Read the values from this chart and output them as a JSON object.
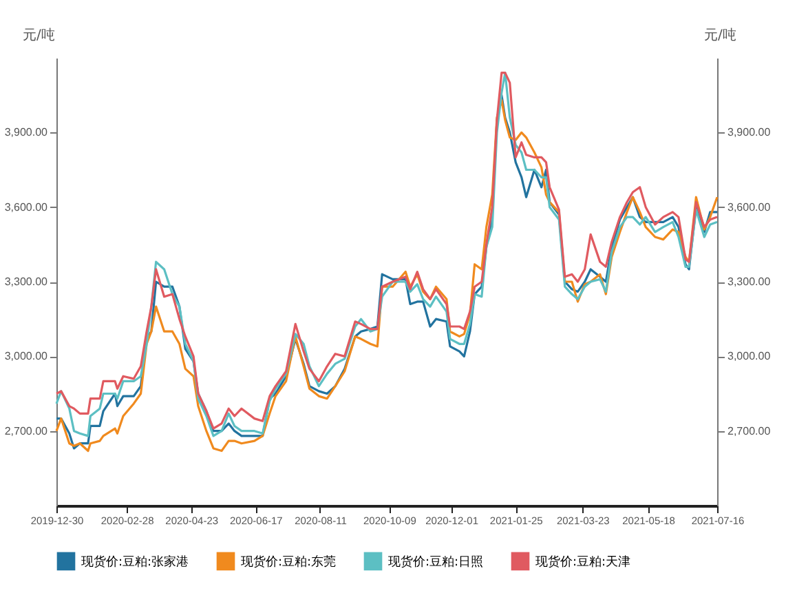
{
  "chart_data": {
    "type": "line",
    "ylabel": "元/吨",
    "y2label": "元/吨",
    "legend": "bottom",
    "grid": false,
    "xlim": [
      "2019-12-30",
      "2021-07-16"
    ],
    "xticks": [
      "2019-12-30",
      "2020-02-28",
      "2020-04-23",
      "2020-06-17",
      "2020-08-11",
      "2020-10-09",
      "2020-12-01",
      "2021-01-25",
      "2021-03-23",
      "2021-05-18",
      "2021-07-16"
    ],
    "ylim": [
      2400,
      4200
    ],
    "yticks": [
      {
        "value": 2700,
        "label": "2,700.00"
      },
      {
        "value": 3000,
        "label": "3,000.00"
      },
      {
        "value": 3300,
        "label": "3,300.00"
      },
      {
        "value": 3600,
        "label": "3,600.00"
      },
      {
        "value": 3900,
        "label": "3,900.00"
      }
    ],
    "y2lim": [
      2400,
      4200
    ],
    "y2ticks": [
      {
        "value": 2700,
        "label": "2,700.00"
      },
      {
        "value": 3000,
        "label": "3,000.00"
      },
      {
        "value": 3300,
        "label": "3,300.00"
      },
      {
        "value": 3600,
        "label": "3,600.00"
      },
      {
        "value": 3900,
        "label": "3,900.00"
      }
    ],
    "x": [
      "2019-12-30",
      "2020-01-03",
      "2020-01-10",
      "2020-01-14",
      "2020-01-19",
      "2020-01-26",
      "2020-01-28",
      "2020-02-05",
      "2020-02-08",
      "2020-02-18",
      "2020-02-20",
      "2020-02-25",
      "2020-03-05",
      "2020-03-11",
      "2020-03-16",
      "2020-03-20",
      "2020-03-24",
      "2020-03-31",
      "2020-04-07",
      "2020-04-13",
      "2020-04-18",
      "2020-04-25",
      "2020-04-29",
      "2020-05-06",
      "2020-05-12",
      "2020-05-19",
      "2020-05-25",
      "2020-05-30",
      "2020-06-05",
      "2020-06-16",
      "2020-06-23",
      "2020-06-29",
      "2020-07-04",
      "2020-07-13",
      "2020-07-21",
      "2020-07-28",
      "2020-08-02",
      "2020-08-10",
      "2020-08-17",
      "2020-08-24",
      "2020-09-01",
      "2020-09-10",
      "2020-09-15",
      "2020-09-23",
      "2020-09-29",
      "2020-10-03",
      "2020-10-12",
      "2020-10-23",
      "2020-10-27",
      "2020-11-02",
      "2020-11-07",
      "2020-11-13",
      "2020-11-18",
      "2020-11-27",
      "2020-11-30",
      "2020-12-08",
      "2020-12-12",
      "2020-12-17",
      "2020-12-21",
      "2020-12-27",
      "2020-12-31",
      "2021-01-05",
      "2021-01-09",
      "2021-01-13",
      "2021-01-16",
      "2021-01-20",
      "2021-01-25",
      "2021-01-30",
      "2021-02-03",
      "2021-02-10",
      "2021-02-16",
      "2021-02-20",
      "2021-02-23",
      "2021-03-03",
      "2021-03-08",
      "2021-03-14",
      "2021-03-19",
      "2021-03-25",
      "2021-03-30",
      "2021-04-07",
      "2021-04-12",
      "2021-04-17",
      "2021-04-24",
      "2021-04-30",
      "2021-05-05",
      "2021-05-11",
      "2021-05-16",
      "2021-05-24",
      "2021-05-31",
      "2021-06-08",
      "2021-06-13",
      "2021-06-19",
      "2021-06-22",
      "2021-06-28",
      "2021-07-05",
      "2021-07-10",
      "2021-07-16"
    ],
    "series": [
      {
        "name": "现货价:豆粕:张家港",
        "color": "#22739f",
        "values": [
          2750,
          2750,
          2690,
          2630,
          2650,
          2650,
          2720,
          2720,
          2780,
          2850,
          2800,
          2840,
          2840,
          2880,
          3070,
          3100,
          3300,
          3280,
          3280,
          3200,
          3030,
          2980,
          2850,
          2780,
          2700,
          2700,
          2730,
          2700,
          2680,
          2680,
          2680,
          2830,
          2850,
          2920,
          3070,
          2970,
          2880,
          2860,
          2850,
          2880,
          2950,
          3080,
          3100,
          3110,
          3120,
          3330,
          3310,
          3310,
          3210,
          3220,
          3220,
          3120,
          3150,
          3140,
          3040,
          3020,
          3000,
          3100,
          3250,
          3280,
          3440,
          3560,
          3950,
          4050,
          3960,
          3900,
          3780,
          3720,
          3640,
          3750,
          3680,
          3750,
          3620,
          3570,
          3300,
          3270,
          3260,
          3300,
          3350,
          3320,
          3300,
          3440,
          3550,
          3600,
          3640,
          3560,
          3540,
          3540,
          3540,
          3560,
          3520,
          3370,
          3350,
          3600,
          3500,
          3580,
          3580
        ]
      },
      {
        "name": "现货价:豆粕:东莞",
        "color": "#f08a1e",
        "values": [
          2700,
          2750,
          2650,
          2640,
          2650,
          2620,
          2650,
          2660,
          2680,
          2710,
          2690,
          2760,
          2810,
          2850,
          3050,
          3100,
          3200,
          3100,
          3100,
          3050,
          2950,
          2920,
          2800,
          2700,
          2630,
          2620,
          2660,
          2660,
          2650,
          2660,
          2680,
          2770,
          2840,
          2900,
          3080,
          2960,
          2870,
          2840,
          2830,
          2880,
          2940,
          3080,
          3070,
          3050,
          3040,
          3280,
          3280,
          3340,
          3280,
          3330,
          3260,
          3230,
          3280,
          3230,
          3100,
          3080,
          3090,
          3170,
          3370,
          3350,
          3520,
          3650,
          3960,
          4030,
          3950,
          3880,
          3870,
          3900,
          3880,
          3820,
          3760,
          3650,
          3620,
          3580,
          3300,
          3300,
          3220,
          3290,
          3300,
          3330,
          3250,
          3400,
          3500,
          3580,
          3640,
          3580,
          3520,
          3480,
          3470,
          3510,
          3500,
          3400,
          3380,
          3640,
          3510,
          3560,
          3640
        ]
      },
      {
        "name": "现货价:豆粕:日照",
        "color": "#5cbfc3",
        "values": [
          2810,
          2860,
          2790,
          2700,
          2690,
          2680,
          2760,
          2790,
          2850,
          2850,
          2830,
          2900,
          2900,
          2920,
          3050,
          3200,
          3380,
          3350,
          3250,
          3200,
          3050,
          2980,
          2830,
          2760,
          2680,
          2700,
          2770,
          2720,
          2700,
          2700,
          2690,
          2820,
          2870,
          2930,
          3090,
          3050,
          2960,
          2880,
          2930,
          2970,
          2990,
          3120,
          3150,
          3100,
          3110,
          3240,
          3300,
          3300,
          3260,
          3290,
          3230,
          3200,
          3240,
          3180,
          3070,
          3050,
          3050,
          3130,
          3250,
          3240,
          3440,
          3520,
          3900,
          4060,
          4140,
          3960,
          3850,
          3820,
          3750,
          3750,
          3720,
          3720,
          3600,
          3550,
          3280,
          3250,
          3230,
          3280,
          3300,
          3310,
          3260,
          3420,
          3520,
          3560,
          3560,
          3530,
          3560,
          3500,
          3520,
          3540,
          3480,
          3360,
          3360,
          3590,
          3480,
          3530,
          3540
        ]
      },
      {
        "name": "现货价:豆粕:天津",
        "color": "#e05a60",
        "values": [
          2850,
          2860,
          2800,
          2790,
          2770,
          2770,
          2830,
          2830,
          2900,
          2900,
          2870,
          2920,
          2910,
          2960,
          3100,
          3200,
          3350,
          3240,
          3250,
          3150,
          3080,
          3000,
          2850,
          2780,
          2710,
          2730,
          2790,
          2760,
          2790,
          2750,
          2740,
          2840,
          2880,
          2940,
          3130,
          3020,
          2950,
          2900,
          2960,
          3010,
          3000,
          3140,
          3130,
          3110,
          3110,
          3280,
          3300,
          3320,
          3270,
          3340,
          3270,
          3230,
          3270,
          3210,
          3120,
          3120,
          3110,
          3180,
          3280,
          3300,
          3450,
          3600,
          3950,
          4140,
          4140,
          4100,
          3800,
          3860,
          3810,
          3800,
          3800,
          3780,
          3680,
          3590,
          3320,
          3330,
          3300,
          3350,
          3490,
          3380,
          3360,
          3460,
          3560,
          3620,
          3660,
          3680,
          3600,
          3530,
          3560,
          3580,
          3560,
          3390,
          3380,
          3620,
          3520,
          3550,
          3560
        ]
      }
    ]
  }
}
